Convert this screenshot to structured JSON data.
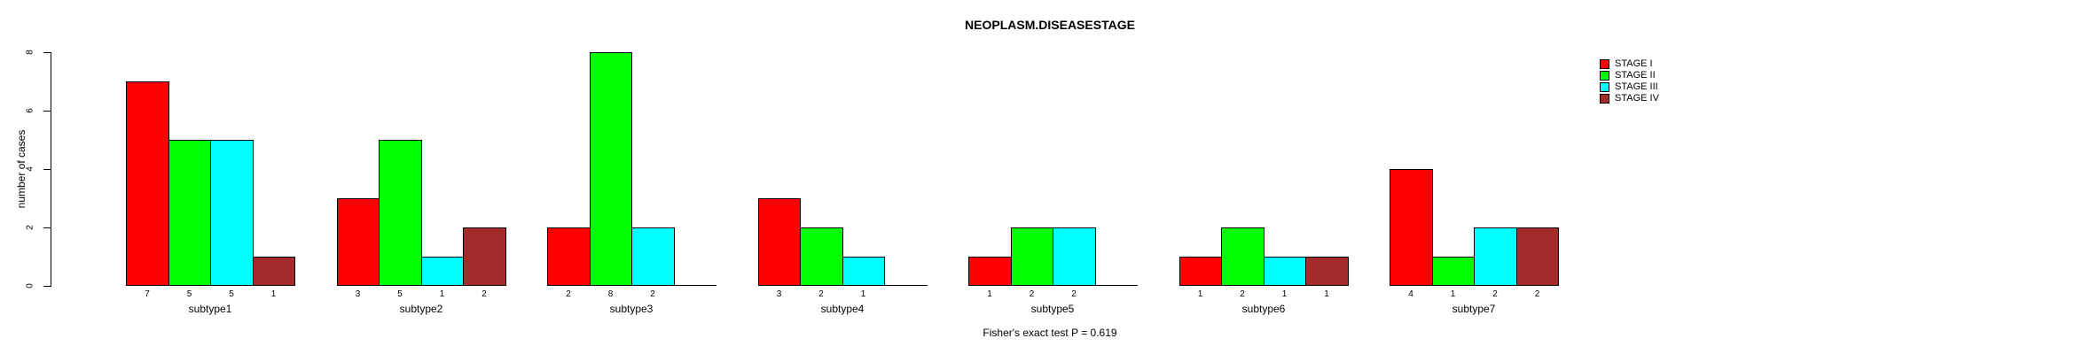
{
  "chart_data": {
    "type": "bar",
    "title": "NEOPLASM.DISEASESTAGE",
    "ylabel": "number of cases",
    "xlabel": "",
    "ylim": [
      0,
      8
    ],
    "yticks": [
      0,
      2,
      4,
      6,
      8
    ],
    "grid": false,
    "background": "#FFFFFF",
    "axis_color": "#000000",
    "legend_position": "top-right",
    "show_value_labels_under_bars": true,
    "categories": [
      "subtype1",
      "subtype2",
      "subtype3",
      "subtype4",
      "subtype5",
      "subtype6",
      "subtype7"
    ],
    "series": [
      {
        "name": "STAGE I",
        "color": "#FF0000",
        "values": [
          7,
          3,
          2,
          3,
          1,
          1,
          4
        ]
      },
      {
        "name": "STAGE II",
        "color": "#00FF00",
        "values": [
          5,
          5,
          8,
          2,
          2,
          2,
          1
        ]
      },
      {
        "name": "STAGE III",
        "color": "#00FFFF",
        "values": [
          5,
          1,
          2,
          1,
          2,
          1,
          2
        ]
      },
      {
        "name": "STAGE IV",
        "color": "#A52A2A",
        "values": [
          1,
          2,
          0,
          0,
          0,
          1,
          2
        ]
      }
    ],
    "annotation": "Fisher's exact test P = 0.619"
  }
}
